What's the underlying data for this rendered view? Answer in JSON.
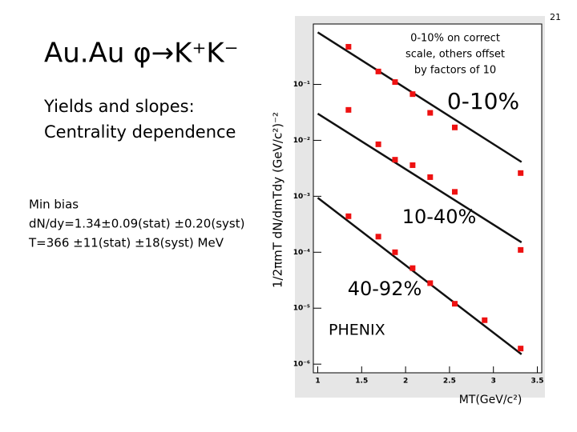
{
  "page_number": "21",
  "title": "Au.Au φ→K⁺K⁻",
  "subtitle_lines": [
    "Yields and slopes:",
    "Centrality dependence"
  ],
  "info_lines": [
    "Min bias",
    "dN/dy=1.34±0.09(stat) ±0.20(syst)",
    "T=366 ±11(stat) ±18(syst) MeV"
  ],
  "chart_data": {
    "type": "scatter",
    "y_label": "1/2πmT dN/dmTdy (GeV/c²)⁻²",
    "x_label": "MT(GeV/c²)",
    "note_lines": [
      "0-10% on correct",
      "scale, others offset",
      "by factors of 10"
    ],
    "experiment_label": "PHENIX",
    "xlim": [
      0.95,
      3.55
    ],
    "xticks": [
      1,
      1.5,
      2,
      2.5,
      3,
      3.5
    ],
    "ylim": [
      7e-07,
      1.2
    ],
    "log_y": true,
    "yticks": [
      {
        "value": 0.1,
        "label": "10⁻¹"
      },
      {
        "value": 0.01,
        "label": "10⁻²"
      },
      {
        "value": 0.001,
        "label": "10⁻³"
      },
      {
        "value": 0.0001,
        "label": "10⁻⁴"
      },
      {
        "value": 1e-05,
        "label": "10⁻⁵"
      },
      {
        "value": 1e-06,
        "label": "10⁻⁶"
      }
    ],
    "series": [
      {
        "name": "0-10%",
        "color": "#ee1111",
        "x": [
          1.35,
          1.69,
          1.88,
          2.08,
          2.28,
          2.56,
          3.31
        ],
        "values": [
          0.47,
          0.17,
          0.11,
          0.067,
          0.031,
          0.017,
          0.0026
        ]
      },
      {
        "name": "10-40%",
        "color": "#ee1111",
        "x": [
          1.35,
          1.69,
          1.88,
          2.08,
          2.28,
          2.56,
          3.31
        ],
        "values": [
          0.035,
          0.0085,
          0.0045,
          0.0036,
          0.0022,
          0.0012,
          0.00011
        ]
      },
      {
        "name": "40-92%",
        "color": "#ee1111",
        "x": [
          1.35,
          1.69,
          1.88,
          2.08,
          2.28,
          2.56,
          2.9,
          3.31
        ],
        "values": [
          0.00044,
          0.00019,
          0.0001,
          5.2e-05,
          2.8e-05,
          1.2e-05,
          6.1e-06,
          1.9e-06
        ]
      }
    ],
    "fits": [
      {
        "color": "#111111",
        "x": [
          1,
          3.32
        ],
        "values": [
          0.85,
          0.0041
        ]
      },
      {
        "color": "#111111",
        "x": [
          1,
          3.32
        ],
        "values": [
          0.03,
          0.00015
        ]
      },
      {
        "color": "#111111",
        "x": [
          1,
          3.32
        ],
        "values": [
          0.00094,
          1.5e-06
        ]
      }
    ]
  }
}
